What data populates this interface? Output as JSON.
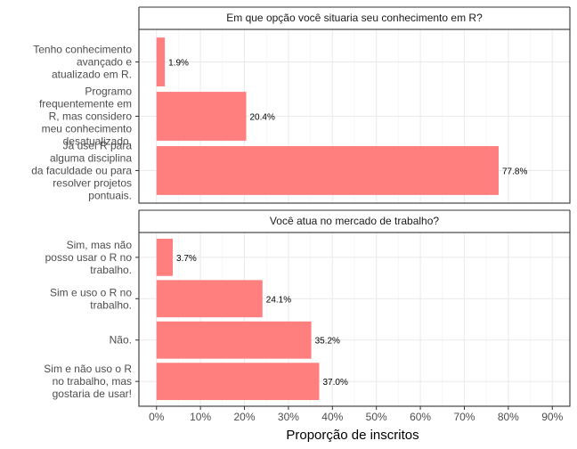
{
  "chart_data": {
    "type": "bar",
    "orientation": "horizontal",
    "xlabel": "Proporção de inscritos",
    "xlim": [
      -0.04,
      0.94
    ],
    "x_ticks": [
      0,
      0.1,
      0.2,
      0.3,
      0.4,
      0.5,
      0.6,
      0.7,
      0.8,
      0.9
    ],
    "x_tick_labels": [
      "0%",
      "10%",
      "20%",
      "30%",
      "40%",
      "50%",
      "60%",
      "70%",
      "80%",
      "90%"
    ],
    "grid": true,
    "bar_color": "#ff7f7f",
    "panels": [
      {
        "title": "Em que opção você situaria seu conhecimento em R?",
        "categories": [
          [
            "Tenho conhecimento",
            "avançado e",
            "atualizado em R."
          ],
          [
            "Programo",
            "frequentemente em",
            "R, mas considero",
            "meu conhecimento",
            "desatualizado."
          ],
          [
            "Já usei R para",
            "alguma disciplina",
            "da faculdade ou para",
            "resolver projetos",
            "pontuais."
          ]
        ],
        "values": [
          0.019,
          0.204,
          0.778
        ],
        "labels": [
          "1.9%",
          "20.4%",
          "77.8%"
        ]
      },
      {
        "title": "Você atua no mercado de trabalho?",
        "categories": [
          [
            "Sim, mas não",
            "posso usar o R no",
            "trabalho."
          ],
          [
            "Sim e uso o R no",
            "trabalho."
          ],
          [
            "Não."
          ],
          [
            "Sim e não uso o R",
            "no trabalho, mas",
            "gostaria de usar!"
          ]
        ],
        "values": [
          0.037,
          0.241,
          0.352,
          0.37
        ],
        "labels": [
          "3.7%",
          "24.1%",
          "35.2%",
          "37.0%"
        ]
      }
    ]
  }
}
